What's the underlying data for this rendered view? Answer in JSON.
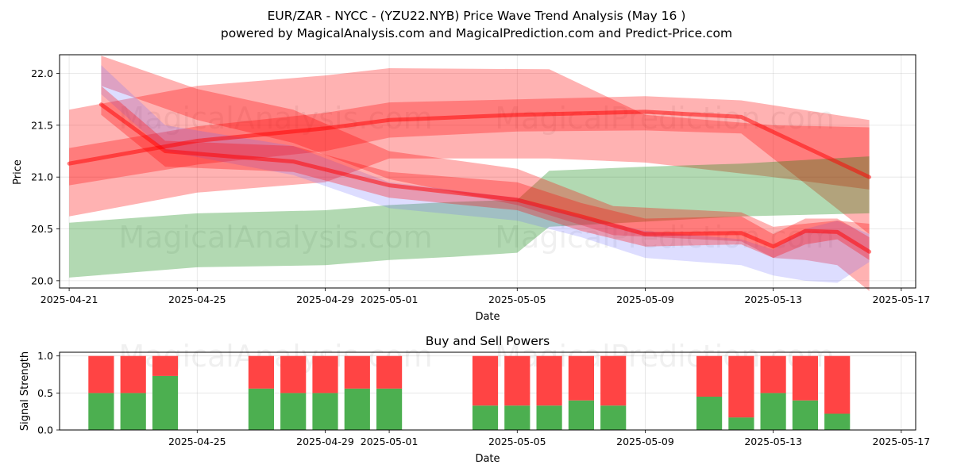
{
  "title_line1": "EUR/ZAR - NYCC -  (YZU22.NYB) Price Wave Trend Analysis (May 16 )",
  "title_line2": "powered by MagicalAnalysis.com and MagicalPrediction.com and Predict-Price.com",
  "watermarks": [
    "MagicalAnalysis.com",
    "MagicalPrediction.com"
  ],
  "colors": {
    "red": "#ff0000",
    "green": "#008000",
    "blue": "#6666ff"
  },
  "chart_data": [
    {
      "type": "area",
      "title": "",
      "xlabel": "Date",
      "ylabel": "Price",
      "xlim": [
        "2025-04-21",
        "2025-05-17"
      ],
      "ylim": [
        19.93,
        22.18
      ],
      "x_ticks": [
        "2025-04-21",
        "2025-04-25",
        "2025-04-29",
        "2025-05-01",
        "2025-05-05",
        "2025-05-09",
        "2025-05-13",
        "2025-05-17"
      ],
      "y_ticks": [
        "20.0",
        "20.5",
        "21.0",
        "21.5",
        "22.0"
      ],
      "grid": true,
      "bands": [
        {
          "color": "red",
          "x": [
            "2025-04-21",
            "2025-04-25",
            "2025-04-29",
            "2025-05-01",
            "2025-05-06",
            "2025-05-09",
            "2025-05-13",
            "2025-05-16"
          ],
          "upper": [
            21.65,
            21.88,
            21.98,
            22.05,
            22.04,
            21.6,
            21.5,
            21.48
          ],
          "lower": [
            20.62,
            20.85,
            20.95,
            21.18,
            21.18,
            21.14,
            21.0,
            20.88
          ]
        },
        {
          "color": "red",
          "x": [
            "2025-04-21",
            "2025-04-25",
            "2025-04-29",
            "2025-05-01",
            "2025-05-05",
            "2025-05-09",
            "2025-05-12",
            "2025-05-16"
          ],
          "upper": [
            21.28,
            21.49,
            21.62,
            21.72,
            21.75,
            21.78,
            21.74,
            21.55
          ],
          "lower": [
            20.92,
            21.12,
            21.25,
            21.38,
            21.44,
            21.45,
            21.42,
            20.45
          ]
        },
        {
          "color": "green",
          "x": [
            "2025-04-21",
            "2025-04-25",
            "2025-04-29",
            "2025-05-01",
            "2025-05-03",
            "2025-05-05",
            "2025-05-06",
            "2025-05-09",
            "2025-05-12",
            "2025-05-16"
          ],
          "upper": [
            20.56,
            20.65,
            20.68,
            20.73,
            20.76,
            20.78,
            21.06,
            21.1,
            21.13,
            21.2
          ],
          "lower": [
            20.03,
            20.13,
            20.15,
            20.2,
            20.23,
            20.27,
            20.52,
            20.57,
            20.62,
            20.65
          ]
        },
        {
          "color": "red",
          "x": [
            "2025-04-22",
            "2025-04-25",
            "2025-04-28",
            "2025-05-01",
            "2025-05-05",
            "2025-05-08",
            "2025-05-12",
            "2025-05-13",
            "2025-05-14",
            "2025-05-15",
            "2025-05-16"
          ],
          "upper": [
            22.17,
            21.85,
            21.65,
            21.25,
            21.08,
            20.72,
            20.66,
            20.52,
            20.55,
            20.58,
            20.55
          ],
          "lower": [
            21.88,
            21.55,
            21.33,
            20.98,
            20.73,
            20.44,
            20.38,
            20.22,
            20.2,
            20.15,
            19.9
          ]
        },
        {
          "color": "blue",
          "x": [
            "2025-04-22",
            "2025-04-24",
            "2025-04-28",
            "2025-05-01",
            "2025-05-05",
            "2025-05-07",
            "2025-05-09",
            "2025-05-12",
            "2025-05-13",
            "2025-05-14",
            "2025-05-15",
            "2025-05-16"
          ],
          "upper": [
            22.08,
            21.5,
            21.3,
            20.95,
            20.8,
            20.62,
            20.48,
            20.4,
            20.3,
            20.5,
            20.58,
            20.45
          ],
          "lower": [
            21.8,
            21.25,
            21.02,
            20.7,
            20.58,
            20.42,
            20.22,
            20.15,
            20.05,
            20.0,
            19.98,
            20.18
          ]
        },
        {
          "color": "red",
          "x": [
            "2025-04-22",
            "2025-04-24",
            "2025-04-28",
            "2025-05-01",
            "2025-05-05",
            "2025-05-07",
            "2025-05-09",
            "2025-05-12",
            "2025-05-13",
            "2025-05-14",
            "2025-05-15",
            "2025-05-16"
          ],
          "upper": [
            21.88,
            21.35,
            21.3,
            21.05,
            20.95,
            20.75,
            20.6,
            20.62,
            20.45,
            20.6,
            20.6,
            20.42
          ],
          "lower": [
            21.6,
            21.1,
            21.05,
            20.8,
            20.68,
            20.48,
            20.33,
            20.35,
            20.22,
            20.35,
            20.4,
            20.2
          ]
        }
      ],
      "trend_lines": [
        {
          "color": "red",
          "x": [
            "2025-04-21",
            "2025-04-25",
            "2025-04-29",
            "2025-05-01",
            "2025-05-05",
            "2025-05-09",
            "2025-05-12",
            "2025-05-16"
          ],
          "y": [
            21.13,
            21.35,
            21.47,
            21.55,
            21.6,
            21.63,
            21.58,
            21.0
          ]
        },
        {
          "color": "red",
          "x": [
            "2025-04-22",
            "2025-04-24",
            "2025-04-28",
            "2025-05-01",
            "2025-05-05",
            "2025-05-07",
            "2025-05-09",
            "2025-05-12",
            "2025-05-13",
            "2025-05-14",
            "2025-05-15",
            "2025-05-16"
          ],
          "y": [
            21.7,
            21.25,
            21.15,
            20.92,
            20.78,
            20.62,
            20.45,
            20.46,
            20.33,
            20.48,
            20.47,
            20.28
          ]
        }
      ]
    },
    {
      "type": "bar",
      "title": "Buy and Sell Powers",
      "xlabel": "Date",
      "ylabel": "Signal Strength",
      "ylim": [
        0,
        1.05
      ],
      "x_ticks": [
        "2025-04-25",
        "2025-04-29",
        "2025-05-01",
        "2025-05-05",
        "2025-05-09",
        "2025-05-13",
        "2025-05-17"
      ],
      "y_ticks": [
        "0.0",
        "0.5",
        "1.0"
      ],
      "grid": true,
      "dates": [
        "2025-04-22",
        "2025-04-23",
        "2025-04-24",
        "2025-04-27",
        "2025-04-28",
        "2025-04-29",
        "2025-04-30",
        "2025-05-01",
        "2025-05-04",
        "2025-05-05",
        "2025-05-06",
        "2025-05-07",
        "2025-05-08",
        "2025-05-11",
        "2025-05-12",
        "2025-05-13",
        "2025-05-14",
        "2025-05-15"
      ],
      "series": [
        {
          "name": "",
          "color": "#4caf50",
          "values": [
            0.5,
            0.5,
            0.73,
            0.56,
            0.5,
            0.5,
            0.56,
            0.56,
            0.33,
            0.33,
            0.33,
            0.4,
            0.33,
            0.45,
            0.17,
            0.5,
            0.4,
            0.22
          ]
        },
        {
          "name": "",
          "color": "#ff4444",
          "values": [
            0.5,
            0.5,
            0.27,
            0.44,
            0.5,
            0.5,
            0.44,
            0.44,
            0.67,
            0.67,
            0.67,
            0.6,
            0.67,
            0.55,
            0.83,
            0.5,
            0.6,
            0.78
          ]
        }
      ]
    }
  ]
}
